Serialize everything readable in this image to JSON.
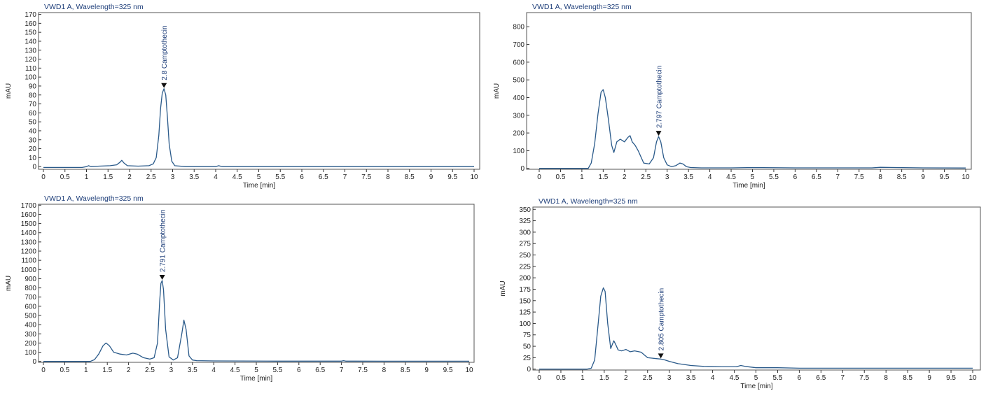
{
  "colors": {
    "trace": "#2a5a8a",
    "text": "#1f3f7a",
    "frame": "#555555"
  },
  "chart_data": [
    {
      "type": "line",
      "title": "VWD1 A, Wavelength=325 nm",
      "xlabel": "Time [min]",
      "ylabel": "mAU",
      "xlim": [
        0,
        10
      ],
      "ylim": [
        -3,
        172
      ],
      "xticks": [
        0,
        0.5,
        1,
        1.5,
        2,
        2.5,
        3,
        3.5,
        4,
        4.5,
        5,
        5.5,
        6,
        6.5,
        7,
        7.5,
        8,
        8.5,
        9,
        9.5,
        10
      ],
      "xtick_labels": [
        "0",
        "0.5",
        "1",
        "1.5",
        "2",
        "2.5",
        "3",
        "3.5",
        "4",
        "4.5",
        "5",
        "5.5",
        "6",
        "6.5",
        "7",
        "7.5",
        "8",
        "8.5",
        "9",
        "9.5",
        "10"
      ],
      "yticks": [
        0,
        10,
        20,
        30,
        40,
        50,
        60,
        70,
        80,
        90,
        100,
        110,
        120,
        130,
        140,
        150,
        160,
        170
      ],
      "ytick_labels": [
        "0",
        "10",
        "20",
        "30",
        "40",
        "50",
        "60",
        "70",
        "80",
        "90",
        "100",
        "110",
        "120",
        "130",
        "140",
        "150",
        "160",
        "170"
      ],
      "grid": false,
      "series": [
        {
          "x": [
            0,
            0.9,
            1,
            1.05,
            1.1,
            1.3,
            1.55,
            1.7,
            1.78,
            1.82,
            1.87,
            1.95,
            2.2,
            2.45,
            2.55,
            2.62,
            2.68,
            2.72,
            2.76,
            2.8,
            2.84,
            2.88,
            2.92,
            2.98,
            3.05,
            3.3,
            3.6,
            4.0,
            4.07,
            4.15,
            5,
            6,
            7,
            8,
            9,
            10
          ],
          "y": [
            -1,
            -1,
            0,
            1,
            0,
            0.5,
            1,
            2,
            5,
            7,
            4,
            1,
            0.5,
            1,
            3,
            10,
            35,
            65,
            82,
            87,
            80,
            55,
            25,
            6,
            1,
            0,
            0,
            0,
            1,
            0,
            0,
            0,
            0,
            0,
            0,
            0
          ]
        }
      ],
      "annotations": [
        {
          "text": "2.8 Camptothecin",
          "x": 2.8,
          "y": 87
        }
      ]
    },
    {
      "type": "line",
      "title": "VWD1 A, Wavelength=325 nm",
      "xlabel": "Time [min]",
      "ylabel": "mAU",
      "xlim": [
        0,
        10
      ],
      "ylim": [
        -5,
        880
      ],
      "xticks": [
        0,
        0.5,
        1,
        1.5,
        2,
        2.5,
        3,
        3.5,
        4,
        4.5,
        5,
        5.5,
        6,
        6.5,
        7,
        7.5,
        8,
        8.5,
        9,
        9.5,
        10
      ],
      "xtick_labels": [
        "0",
        "0.5",
        "1",
        "1.5",
        "2",
        "2.5",
        "3",
        "3.5",
        "4",
        "4.5",
        "5",
        "5.5",
        "6",
        "6.5",
        "7",
        "7.5",
        "8",
        "8.5",
        "9",
        "9.5",
        "10"
      ],
      "yticks": [
        0,
        100,
        200,
        300,
        400,
        500,
        600,
        700,
        800
      ],
      "ytick_labels": [
        "0",
        "100",
        "200",
        "300",
        "400",
        "500",
        "600",
        "700",
        "800"
      ],
      "grid": false,
      "series": [
        {
          "x": [
            0,
            1.15,
            1.22,
            1.3,
            1.38,
            1.45,
            1.5,
            1.55,
            1.62,
            1.7,
            1.75,
            1.82,
            1.9,
            2.0,
            2.08,
            2.13,
            2.18,
            2.25,
            2.32,
            2.45,
            2.58,
            2.68,
            2.75,
            2.8,
            2.85,
            2.92,
            3.0,
            3.1,
            3.2,
            3.3,
            3.37,
            3.45,
            3.55,
            3.8,
            4.5,
            5,
            6,
            7,
            7.8,
            8,
            9,
            10
          ],
          "y": [
            0,
            0,
            30,
            140,
            310,
            430,
            445,
            400,
            280,
            130,
            90,
            150,
            165,
            150,
            175,
            185,
            150,
            130,
            100,
            30,
            25,
            60,
            150,
            180,
            150,
            60,
            20,
            10,
            15,
            30,
            25,
            10,
            5,
            3,
            3,
            5,
            3,
            3,
            3,
            6,
            3,
            2
          ]
        }
      ],
      "annotations": [
        {
          "text": "2.797 Camptothecin",
          "x": 2.8,
          "y": 180
        }
      ]
    },
    {
      "type": "line",
      "title": "VWD1 A, Wavelength=325 nm",
      "xlabel": "Time [min]",
      "ylabel": "mAU",
      "xlim": [
        0,
        10
      ],
      "ylim": [
        -10,
        1710
      ],
      "xticks": [
        0,
        0.5,
        1,
        1.5,
        2,
        2.5,
        3,
        3.5,
        4,
        4.5,
        5,
        5.5,
        6,
        6.5,
        7,
        7.5,
        8,
        8.5,
        9,
        9.5,
        10
      ],
      "xtick_labels": [
        "0",
        "0.5",
        "1",
        "1.5",
        "2",
        "2.5",
        "3",
        "3.5",
        "4",
        "4.5",
        "5",
        "5.5",
        "6",
        "6.5",
        "7",
        "7.5",
        "8",
        "8.5",
        "9",
        "9.5",
        "10"
      ],
      "yticks": [
        0,
        100,
        200,
        300,
        400,
        500,
        600,
        700,
        800,
        900,
        1000,
        1100,
        1200,
        1300,
        1400,
        1500,
        1600,
        1700
      ],
      "ytick_labels": [
        "0",
        "100",
        "200",
        "300",
        "400",
        "500",
        "600",
        "700",
        "800",
        "900",
        "1000",
        "1100",
        "1200",
        "1300",
        "1400",
        "1500",
        "1600",
        "1700"
      ],
      "grid": false,
      "series": [
        {
          "x": [
            0,
            1.1,
            1.2,
            1.3,
            1.4,
            1.47,
            1.55,
            1.65,
            1.8,
            1.95,
            2.1,
            2.2,
            2.35,
            2.5,
            2.6,
            2.68,
            2.73,
            2.76,
            2.79,
            2.82,
            2.87,
            2.95,
            3.05,
            3.15,
            3.25,
            3.3,
            3.35,
            3.42,
            3.5,
            3.6,
            4.0,
            5.5,
            7.0,
            7.05,
            7.1,
            8,
            9,
            10
          ],
          "y": [
            0,
            0,
            20,
            80,
            170,
            200,
            170,
            100,
            80,
            70,
            90,
            80,
            40,
            25,
            40,
            200,
            650,
            850,
            880,
            780,
            350,
            50,
            15,
            40,
            300,
            450,
            350,
            60,
            15,
            8,
            5,
            3,
            3,
            8,
            3,
            2,
            2,
            2
          ]
        }
      ],
      "annotations": [
        {
          "text": "2.791 Camptothecin",
          "x": 2.79,
          "y": 880
        }
      ]
    },
    {
      "type": "line",
      "title": "VWD1 A, Wavelength=325 nm",
      "xlabel": "Time [min]",
      "ylabel": "mAU",
      "xlim": [
        0,
        10
      ],
      "ylim": [
        -2,
        355
      ],
      "xticks": [
        0,
        0.5,
        1,
        1.5,
        2,
        2.5,
        3,
        3.5,
        4,
        4.5,
        5,
        5.5,
        6,
        6.5,
        7,
        7.5,
        8,
        8.5,
        9,
        9.5,
        10
      ],
      "xtick_labels": [
        "0",
        "0.5",
        "1",
        "1.5",
        "2",
        "2.5",
        "3",
        "3.5",
        "4",
        "4.5",
        "5",
        "5.5",
        "6",
        "6.5",
        "7",
        "7.5",
        "8",
        "8.5",
        "9",
        "9.5",
        "10"
      ],
      "yticks": [
        0,
        25,
        50,
        75,
        100,
        125,
        150,
        175,
        200,
        225,
        250,
        275,
        300,
        325,
        350
      ],
      "ytick_labels": [
        "0",
        "25",
        "50",
        "75",
        "100",
        "125",
        "150",
        "175",
        "200",
        "225",
        "250",
        "275",
        "300",
        "325",
        "350"
      ],
      "grid": false,
      "series": [
        {
          "x": [
            0,
            1.1,
            1.2,
            1.28,
            1.35,
            1.42,
            1.48,
            1.52,
            1.58,
            1.65,
            1.72,
            1.76,
            1.82,
            1.9,
            2.0,
            2.1,
            2.2,
            2.35,
            2.5,
            2.6,
            2.7,
            2.8,
            2.9,
            3.0,
            3.2,
            3.5,
            3.8,
            4.2,
            4.55,
            4.65,
            4.75,
            5.0,
            5.5,
            6,
            7,
            8,
            9,
            10
          ],
          "y": [
            0,
            0,
            2,
            20,
            90,
            160,
            178,
            170,
            100,
            45,
            62,
            55,
            42,
            40,
            43,
            38,
            40,
            37,
            25,
            24,
            23,
            22,
            20,
            17,
            12,
            8,
            6,
            5,
            5,
            8,
            6,
            3,
            3,
            2,
            2,
            2,
            2,
            2
          ]
        }
      ],
      "annotations": [
        {
          "text": "2.805 Camptothecin",
          "x": 2.805,
          "y": 22
        }
      ]
    }
  ]
}
